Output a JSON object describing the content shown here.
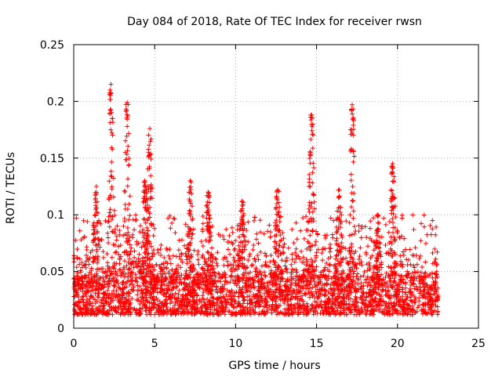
{
  "chart_data": {
    "type": "scatter",
    "title": "Day 084 of 2018, Rate Of TEC Index for receiver rwsn",
    "xlabel": "GPS time / hours",
    "ylabel": "ROTI / TECUs",
    "xlim": [
      0,
      25
    ],
    "ylim": [
      0,
      0.25
    ],
    "xticks": [
      0,
      5,
      10,
      15,
      20,
      25
    ],
    "xtick_labels": [
      "0",
      "5",
      "10",
      "15",
      "20",
      "25"
    ],
    "yticks": [
      0,
      0.05,
      0.1,
      0.15,
      0.2,
      0.25
    ],
    "ytick_labels": [
      "0",
      "0.05",
      "0.1",
      "0.15",
      "0.2",
      "0.25"
    ],
    "grid": true,
    "marker": "+",
    "color": "#ff0000",
    "data_range_hours": [
      0,
      22.5
    ],
    "baseline_band": [
      0.012,
      0.045
    ],
    "peaks": [
      {
        "x": 2.3,
        "y": 0.215
      },
      {
        "x": 3.3,
        "y": 0.199
      },
      {
        "x": 4.7,
        "y": 0.176
      },
      {
        "x": 1.4,
        "y": 0.125
      },
      {
        "x": 4.4,
        "y": 0.13
      },
      {
        "x": 7.2,
        "y": 0.13
      },
      {
        "x": 8.3,
        "y": 0.12
      },
      {
        "x": 10.4,
        "y": 0.112
      },
      {
        "x": 12.6,
        "y": 0.122
      },
      {
        "x": 14.7,
        "y": 0.188
      },
      {
        "x": 17.2,
        "y": 0.197
      },
      {
        "x": 16.4,
        "y": 0.122
      },
      {
        "x": 19.7,
        "y": 0.145
      },
      {
        "x": 18.8,
        "y": 0.1
      }
    ]
  }
}
